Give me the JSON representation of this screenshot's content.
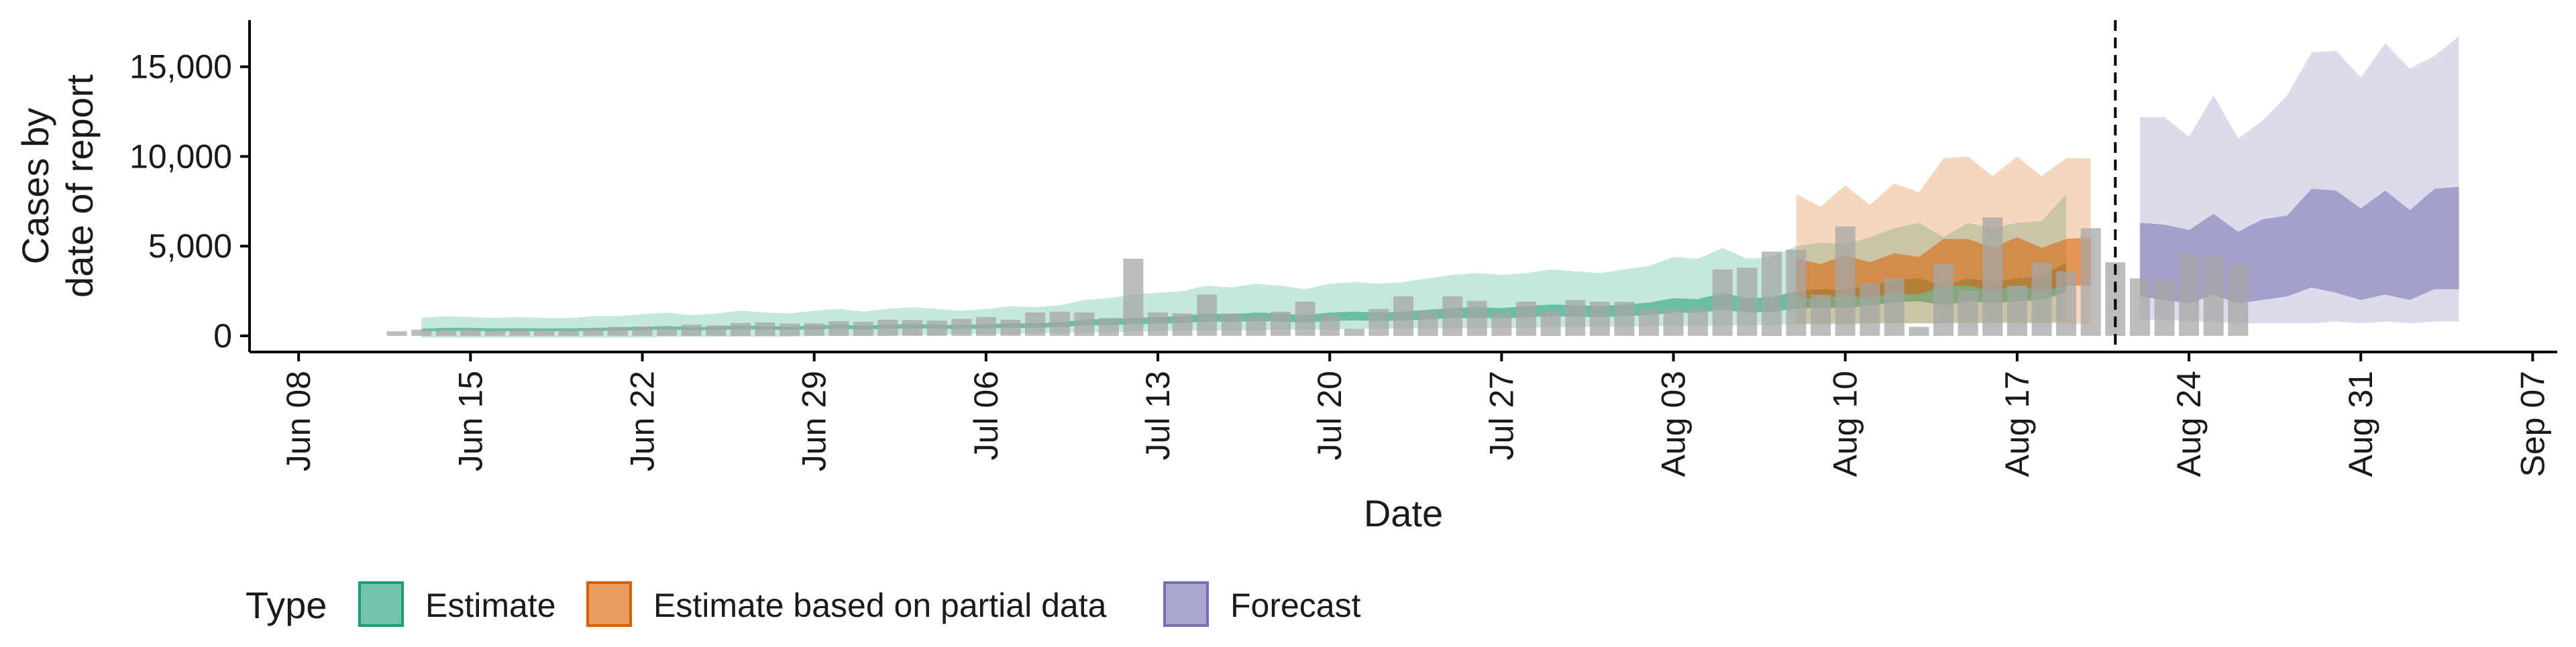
{
  "chart_data": {
    "type": "area",
    "xlabel": "Date",
    "ylabel_lines": [
      "Cases by",
      "date of report"
    ],
    "ylim": [
      -900,
      17600
    ],
    "xlim_dates": [
      "2020-06-06",
      "2020-09-08"
    ],
    "y_ticks": [
      0,
      5000,
      10000,
      15000
    ],
    "y_tick_labels": [
      "0",
      "5,000",
      "10,000",
      "15,000"
    ],
    "x_ticks": [
      "2020-06-08",
      "2020-06-15",
      "2020-06-22",
      "2020-06-29",
      "2020-07-06",
      "2020-07-13",
      "2020-07-20",
      "2020-07-27",
      "2020-08-03",
      "2020-08-10",
      "2020-08-17",
      "2020-08-24",
      "2020-08-31",
      "2020-09-07"
    ],
    "x_tick_labels": [
      "Jun 08",
      "Jun 15",
      "Jun 22",
      "Jun 29",
      "Jul 06",
      "Jul 13",
      "Jul 20",
      "Jul 27",
      "Aug 03",
      "Aug 10",
      "Aug 17",
      "Aug 24",
      "Aug 31",
      "Sep 07"
    ],
    "vline_date": "2020-08-21",
    "grid": false,
    "legend": {
      "title": "Type",
      "position": "bottom-left",
      "items": [
        {
          "label": "Estimate",
          "fill": "#1b9e77",
          "border": "#1b9e77"
        },
        {
          "label": "Estimate based on partial data",
          "fill": "#d95f02",
          "border": "#d95f02"
        },
        {
          "label": "Forecast",
          "fill": "#7570b3",
          "border": "#7570b3"
        }
      ]
    },
    "bars": {
      "color": "#a6a6a6",
      "start_date": "2020-06-12",
      "values": [
        250,
        350,
        330,
        380,
        300,
        360,
        310,
        330,
        420,
        500,
        520,
        480,
        620,
        580,
        720,
        750,
        680,
        700,
        820,
        780,
        900,
        880,
        850,
        950,
        1050,
        900,
        1300,
        1350,
        1300,
        1000,
        4300,
        1300,
        1250,
        2300,
        1250,
        1100,
        1350,
        1900,
        1150,
        400,
        1500,
        2200,
        1400,
        2200,
        1950,
        1300,
        1900,
        1400,
        2000,
        1900,
        1900,
        1500,
        1500,
        1500,
        3700,
        3800,
        4700,
        4800,
        2300,
        6100,
        2900,
        3200,
        500,
        4000,
        2500,
        6600,
        2800,
        4100,
        3600,
        6000,
        4100,
        3200,
        3100,
        4600,
        4400,
        4000
      ]
    },
    "series": [
      {
        "name": "Estimate",
        "color": "#1b9e77",
        "start_date": "2020-06-13",
        "upper90": [
          1000,
          1100,
          1050,
          1000,
          1050,
          1000,
          1000,
          1100,
          1100,
          1200,
          1300,
          1150,
          1250,
          1400,
          1300,
          1250,
          1400,
          1500,
          1350,
          1500,
          1600,
          1500,
          1400,
          1500,
          1650,
          1600,
          1700,
          2000,
          2100,
          2300,
          2400,
          2500,
          2800,
          2700,
          2900,
          2800,
          2600,
          2900,
          3000,
          2900,
          3000,
          3200,
          3400,
          3500,
          3400,
          3500,
          3700,
          3600,
          3500,
          3700,
          3900,
          4400,
          4300,
          4900,
          4300,
          4400,
          5000,
          5200,
          5100,
          5500,
          6000,
          6300,
          5500,
          6300,
          6000,
          6300,
          6400,
          7900
        ],
        "lower90": [
          -100,
          -100,
          -100,
          -100,
          -100,
          -100,
          -100,
          -100,
          -100,
          -100,
          -50,
          -50,
          -50,
          -50,
          -50,
          -50,
          0,
          0,
          0,
          0,
          50,
          50,
          100,
          100,
          100,
          150,
          150,
          200,
          200,
          250,
          250,
          300,
          300,
          300,
          300,
          350,
          350,
          350,
          400,
          400,
          400,
          400,
          450,
          450,
          450,
          450,
          500,
          500,
          500,
          500,
          550,
          550,
          550,
          600,
          600,
          600,
          650,
          650,
          650,
          700,
          700,
          700,
          700,
          750,
          750,
          750,
          750,
          800
        ],
        "upper50": [
          400,
          450,
          450,
          420,
          430,
          420,
          420,
          450,
          460,
          500,
          550,
          480,
          520,
          580,
          540,
          520,
          580,
          620,
          560,
          620,
          660,
          620,
          600,
          640,
          700,
          700,
          760,
          900,
          950,
          1000,
          1050,
          1100,
          1250,
          1200,
          1300,
          1250,
          1150,
          1300,
          1350,
          1300,
          1350,
          1450,
          1550,
          1600,
          1550,
          1650,
          1750,
          1700,
          1650,
          1750,
          1850,
          2100,
          2050,
          2400,
          2100,
          2150,
          2500,
          2600,
          2550,
          2800,
          3100,
          3200,
          2800,
          3200,
          3000,
          3200,
          3300,
          4100
        ],
        "lower50": [
          250,
          280,
          280,
          260,
          270,
          260,
          260,
          280,
          290,
          320,
          350,
          310,
          330,
          370,
          340,
          330,
          370,
          400,
          360,
          400,
          420,
          400,
          380,
          410,
          450,
          450,
          490,
          580,
          610,
          640,
          680,
          710,
          800,
          770,
          830,
          800,
          740,
          830,
          860,
          830,
          860,
          920,
          980,
          1010,
          980,
          1040,
          1100,
          1070,
          1040,
          1100,
          1160,
          1300,
          1270,
          1450,
          1300,
          1330,
          1520,
          1580,
          1550,
          1700,
          1870,
          1930,
          1700,
          1930,
          1820,
          1930,
          1990,
          2450
        ]
      },
      {
        "name": "Estimate based on partial data",
        "color": "#d95f02",
        "start_date": "2020-08-08",
        "upper90": [
          7900,
          7200,
          8400,
          7300,
          8500,
          8000,
          9900,
          10000,
          8900,
          10000,
          8900,
          9900,
          9900
        ],
        "lower90": [
          650,
          700,
          700,
          700,
          700,
          700,
          700,
          700,
          700,
          700,
          700,
          700,
          650
        ],
        "upper50": [
          4300,
          4000,
          4500,
          4100,
          4600,
          4400,
          5400,
          5400,
          4900,
          5500,
          4900,
          5400,
          5500
        ],
        "lower50": [
          2200,
          2000,
          2300,
          2100,
          2400,
          2300,
          2800,
          2800,
          2500,
          2800,
          2500,
          2800,
          2800
        ]
      },
      {
        "name": "Forecast",
        "color": "#7570b3",
        "start_date": "2020-08-22",
        "upper90": [
          12200,
          12200,
          11100,
          13400,
          11000,
          12000,
          13400,
          15800,
          15900,
          14400,
          16300,
          14900,
          15600,
          16700
        ],
        "lower90": [
          900,
          900,
          800,
          800,
          700,
          700,
          700,
          700,
          800,
          700,
          800,
          700,
          800,
          800
        ],
        "upper50": [
          6300,
          6200,
          5900,
          6800,
          5800,
          6500,
          6700,
          8200,
          8100,
          7100,
          8100,
          7000,
          8200,
          8300
        ],
        "lower50": [
          2200,
          2000,
          1800,
          2300,
          1800,
          2000,
          2200,
          2700,
          2400,
          2000,
          2300,
          2000,
          2600,
          2600
        ]
      }
    ]
  }
}
